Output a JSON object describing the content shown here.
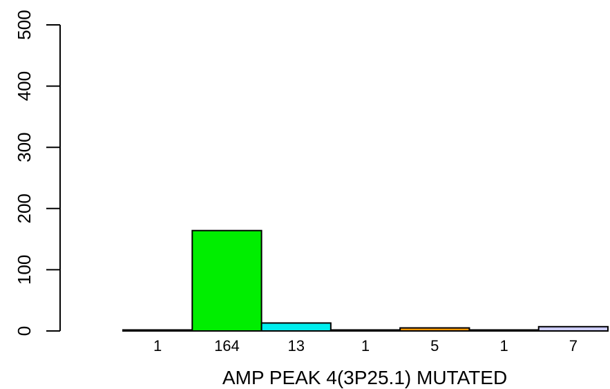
{
  "chart_data": {
    "type": "bar",
    "title": "",
    "xlabel": "AMP PEAK  4(3P25.1) MUTATED",
    "ylabel": "",
    "ylim": [
      0,
      500
    ],
    "yticks": [
      "0",
      "100",
      "200",
      "300",
      "400",
      "500"
    ],
    "categories": [
      "1",
      "164",
      "13",
      "1",
      "5",
      "1",
      "7"
    ],
    "values": [
      1,
      164,
      13,
      1,
      5,
      1,
      7
    ],
    "colors": [
      "#ff0000",
      "#00ee00",
      "#00eeee",
      "#0000ff",
      "#ff9900",
      "#ff00ff",
      "#ccccff"
    ],
    "grid": false,
    "legend": "none"
  }
}
